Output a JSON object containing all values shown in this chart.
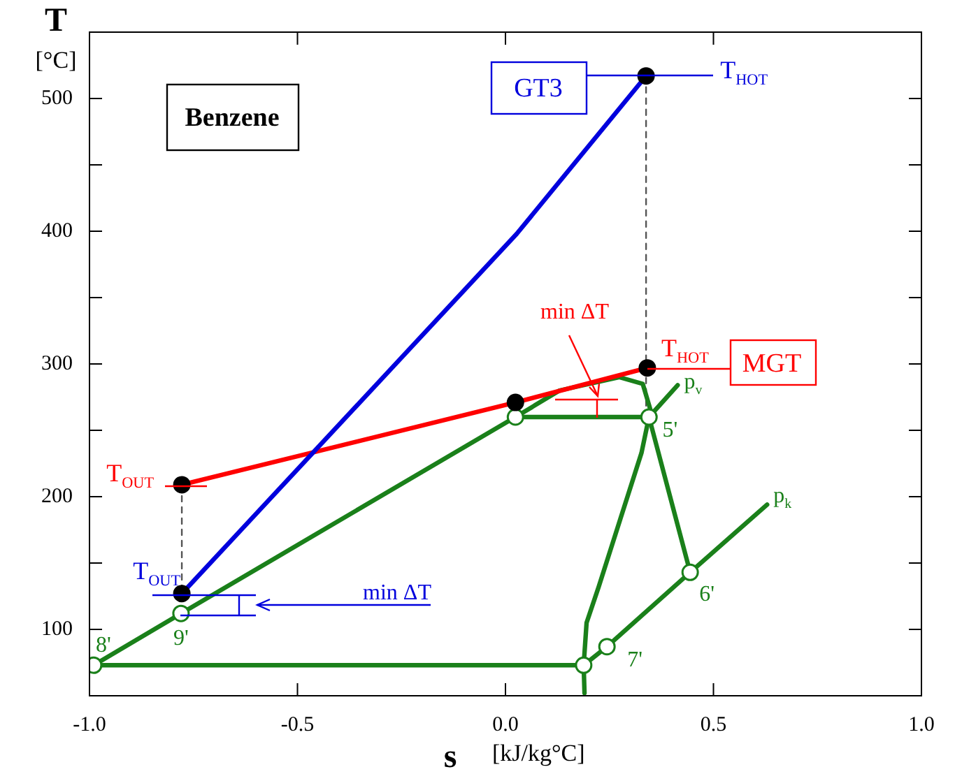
{
  "chart_data": {
    "type": "line",
    "xlabel": "s [kJ/kg°C]",
    "ylabel": "T [°C]",
    "xlim": [
      -1.0,
      1.0
    ],
    "xticks": [
      {
        "value": -1.0,
        "label": "-1.0"
      },
      {
        "value": -0.5,
        "label": "-0.5"
      },
      {
        "value": 0,
        "label": "0.0"
      },
      {
        "value": 0.5,
        "label": "0.5"
      },
      {
        "value": 1.0,
        "label": "1.0"
      }
    ],
    "ylim": [
      50,
      550
    ],
    "yticks": [
      100,
      {
        "value": 150,
        "label": null
      },
      200,
      {
        "value": 250,
        "label": null
      },
      300,
      {
        "value": 350,
        "label": null
      },
      400,
      {
        "value": 450,
        "label": null
      },
      500
    ],
    "grid": false,
    "legend": false,
    "marker": "none",
    "line_style": "solid",
    "series": [
      {
        "color": "#0000dd",
        "x": [
          -0.778,
          0.027,
          0.338
        ],
        "values": [
          127,
          398,
          517
        ]
      },
      {
        "color": "#ff0000",
        "x": [
          -0.778,
          0.024,
          0.341
        ],
        "values": [
          209,
          271,
          297
        ]
      },
      {
        "color": "#1a801a",
        "x": [
          -0.99,
          -0.78,
          0.024,
          0.13,
          0.274,
          0.33,
          0.348,
          0.345
        ],
        "values": [
          73,
          112,
          260,
          280,
          290,
          285,
          266,
          260
        ]
      },
      {
        "color": "#1a801a",
        "x": [
          0.024,
          0.345
        ],
        "values": [
          260,
          260
        ]
      },
      {
        "color": "#1a801a",
        "x": [
          0.345,
          0.327,
          0.276,
          0.224,
          0.195,
          0.188,
          0.19
        ],
        "values": [
          260,
          233,
          183,
          132,
          105,
          73,
          52
        ]
      },
      {
        "color": "#1a801a",
        "x": [
          0.345,
          0.444
        ],
        "values": [
          260,
          143
        ]
      },
      {
        "color": "#1a801a",
        "x": [
          0.188,
          0.244,
          0.444,
          0.629
        ],
        "values": [
          73,
          87,
          143,
          194
        ]
      },
      {
        "color": "#1a801a",
        "x": [
          0.345,
          0.414
        ],
        "values": [
          260,
          284
        ]
      },
      {
        "color": "#1a801a",
        "x": [
          -0.99,
          0.188
        ],
        "values": [
          73,
          73
        ]
      },
      {
        "line_style": "dashed",
        "color": "#555555",
        "x": [
          0.338,
          0.338
        ],
        "values": [
          517,
          262
        ]
      },
      {
        "line_style": "dashed",
        "color": "#555555",
        "x": [
          -0.778,
          -0.778
        ],
        "values": [
          209,
          127
        ]
      },
      {
        "type": "scatter",
        "marker": "circle",
        "color": "#000000",
        "x": [
          -0.778,
          0.338,
          -0.778,
          0.024,
          0.341
        ],
        "values": [
          127,
          517,
          209,
          271,
          297
        ]
      },
      {
        "type": "scatter",
        "marker": "circle",
        "color": "#1a801a",
        "x": [
          -0.99,
          -0.78,
          0.024,
          0.345,
          0.444,
          0.244,
          0.188
        ],
        "values": [
          73,
          112,
          260,
          260,
          143,
          87,
          73
        ]
      }
    ],
    "annotations": [
      "Benzene",
      "GT3",
      "MGT",
      "min ΔT",
      "min ΔT",
      {
        "text": "T$_{HOT}$",
        "x": 0.338,
        "y": 517
      },
      {
        "text": "T$_{HOT}$",
        "x": 0.341,
        "y": 297
      },
      {
        "text": "T$_{OUT}$",
        "x": -0.778,
        "y": 209
      },
      {
        "text": "T$_{OUT}$",
        "x": -0.778,
        "y": 127
      },
      {
        "text": "8'",
        "x": -0.99,
        "y": 73
      },
      {
        "text": "9'",
        "x": -0.78,
        "y": 112
      },
      {
        "text": "5'",
        "x": 0.345,
        "y": 260
      },
      {
        "text": "6'",
        "x": 0.444,
        "y": 143
      },
      {
        "text": "7'",
        "x": 0.244,
        "y": 87
      },
      {
        "text": "p$_{v}$",
        "x": 0.414,
        "y": 284
      },
      {
        "text": "p$_{k}$",
        "x": 0.629,
        "y": 194
      }
    ]
  }
}
